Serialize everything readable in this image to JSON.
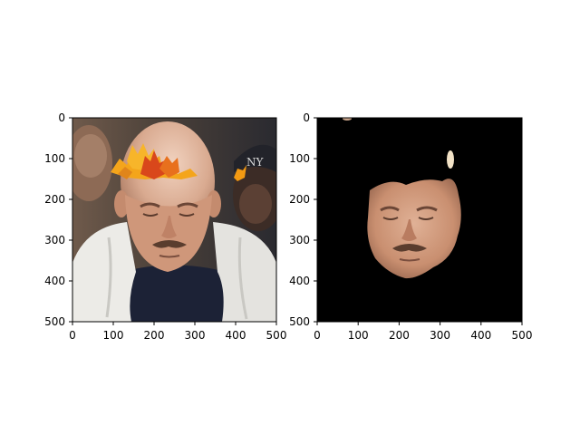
{
  "panels": [
    {
      "name": "original-photo",
      "content": "photo of a bald man with a white towel around his neck and orange autumn leaves overlaid on his forehead",
      "x_ticks": [
        "0",
        "100",
        "200",
        "300",
        "400",
        "500"
      ],
      "y_ticks": [
        "0",
        "100",
        "200",
        "300",
        "400",
        "500"
      ],
      "xlim": [
        0,
        500
      ],
      "ylim": [
        500,
        0
      ]
    },
    {
      "name": "face-mask-result",
      "content": "segmented face region on a black background",
      "x_ticks": [
        "0",
        "100",
        "200",
        "300",
        "400",
        "500"
      ],
      "y_ticks": [
        "0",
        "100",
        "200",
        "300",
        "400",
        "500"
      ],
      "xlim": [
        0,
        500
      ],
      "ylim": [
        500,
        0
      ]
    }
  ],
  "colors": {
    "axis": "#000000",
    "mask_background": "#000000",
    "leaf_orange": "#f39a12",
    "leaf_red": "#d9471b",
    "towel": "#e9e9e6",
    "skin": "#d2a085"
  }
}
